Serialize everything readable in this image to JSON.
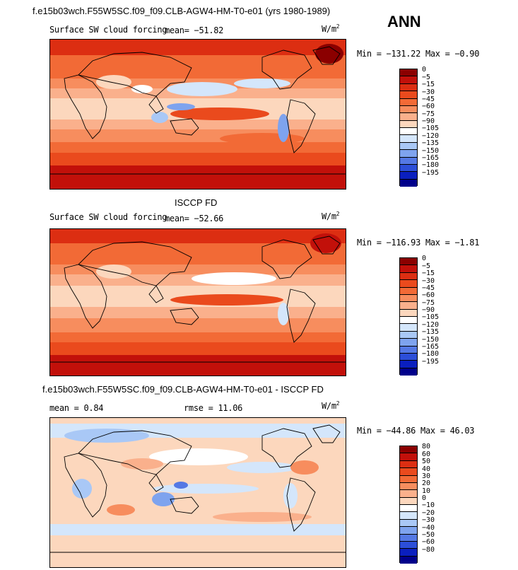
{
  "header": {
    "title": "f.e15b03wch.F55W5SC.f09_f09.CLB-AGW4-HM-T0-e01 (yrs 1980-1989)",
    "season": "ANN"
  },
  "panels": [
    {
      "id": "model",
      "section_title": "",
      "variable": "Surface SW cloud forcing",
      "mean_text": "mean=  −51.82",
      "rmse_text": "",
      "units_base": "W/m",
      "units_exp": "2",
      "minmax": "Min = −131.22 Max =  −0.90",
      "colorbar_labels": [
        "0",
        "−5",
        "−15",
        "−30",
        "−45",
        "−60",
        "−75",
        "−90",
        "−105",
        "−120",
        "−135",
        "−150",
        "−165",
        "−180",
        "−195"
      ],
      "colorbar_colors": [
        "#8b0000",
        "#c2100a",
        "#dc2e12",
        "#ea4a1d",
        "#f26a36",
        "#f78d5e",
        "#fab08c",
        "#fcd7bd",
        "#ffffff",
        "#d4e6fb",
        "#a9c8f6",
        "#7ea3ee",
        "#5478e4",
        "#2c4ed8",
        "#0a1fbf",
        "#00008b"
      ]
    },
    {
      "id": "obs",
      "section_title": "ISCCP FD",
      "variable": "Surface SW cloud forcing",
      "mean_text": "mean=  −52.66",
      "rmse_text": "",
      "units_base": "W/m",
      "units_exp": "2",
      "minmax": "Min = −116.93 Max =  −1.81",
      "colorbar_labels": [
        "0",
        "−5",
        "−15",
        "−30",
        "−45",
        "−60",
        "−75",
        "−90",
        "−105",
        "−120",
        "−135",
        "−150",
        "−165",
        "−180",
        "−195"
      ],
      "colorbar_colors": [
        "#8b0000",
        "#c2100a",
        "#dc2e12",
        "#ea4a1d",
        "#f26a36",
        "#f78d5e",
        "#fab08c",
        "#fcd7bd",
        "#ffffff",
        "#d4e6fb",
        "#a9c8f6",
        "#7ea3ee",
        "#5478e4",
        "#2c4ed8",
        "#0a1fbf",
        "#00008b"
      ]
    },
    {
      "id": "diff",
      "section_title": "f.e15b03wch.F55W5SC.f09_f09.CLB-AGW4-HM-T0-e01 - ISCCP FD",
      "variable": "",
      "mean_text": "mean =    0.84",
      "rmse_text": "rmse =   11.06",
      "units_base": "W/m",
      "units_exp": "2",
      "minmax": "Min = −44.86 Max =  46.03",
      "colorbar_labels": [
        "80",
        "60",
        "50",
        "40",
        "30",
        "20",
        "10",
        "0",
        "−10",
        "−20",
        "−30",
        "−40",
        "−50",
        "−60",
        "−80"
      ],
      "colorbar_colors": [
        "#8b0000",
        "#c2100a",
        "#dc2e12",
        "#ea4a1d",
        "#f26a36",
        "#f78d5e",
        "#fab08c",
        "#fcd7bd",
        "#ffffff",
        "#d4e6fb",
        "#a9c8f6",
        "#7ea3ee",
        "#5478e4",
        "#2c4ed8",
        "#0a1fbf",
        "#00008b"
      ]
    }
  ]
}
